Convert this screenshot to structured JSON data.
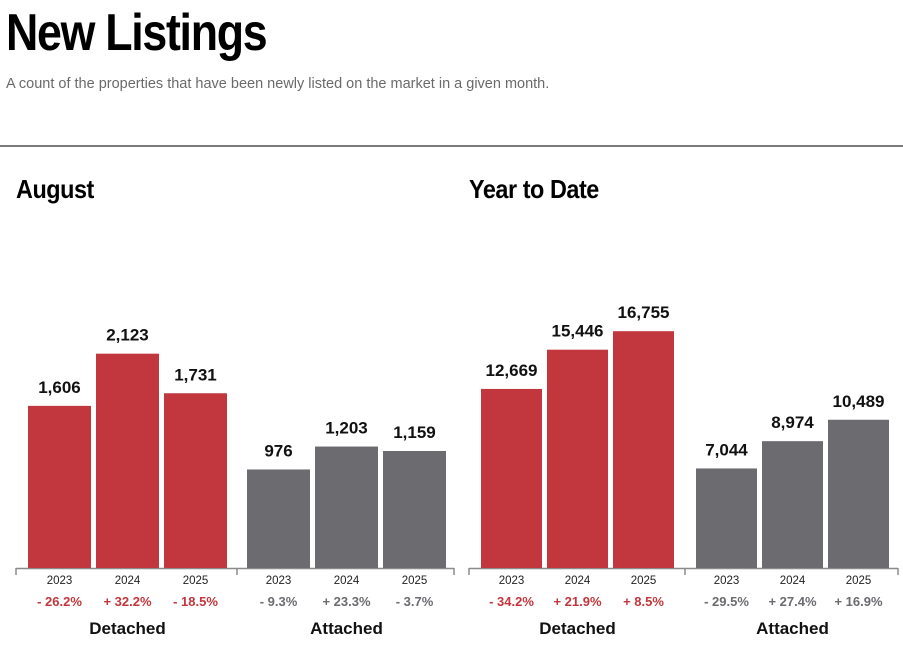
{
  "header": {
    "title": "New Listings",
    "subtitle": "A count of the properties that have been newly listed on the market in a given month."
  },
  "colors": {
    "detached": "#c1373d",
    "attached": "#6b6b70",
    "detached_change": "#c1373d",
    "attached_change": "#6b6b70",
    "axis": "#8a8a8a"
  },
  "chart_data": [
    {
      "type": "bar",
      "title": "August",
      "categories": [
        "2023",
        "2024",
        "2025"
      ],
      "series": [
        {
          "name": "Detached",
          "values": [
            1606,
            2123,
            1731
          ],
          "labels": [
            "1,606",
            "2,123",
            "1,731"
          ],
          "changes": [
            "- 26.2%",
            "+ 32.2%",
            "- 18.5%"
          ]
        },
        {
          "name": "Attached",
          "values": [
            976,
            1203,
            1159
          ],
          "labels": [
            "976",
            "1,203",
            "1,159"
          ],
          "changes": [
            "- 9.3%",
            "+ 23.3%",
            "- 3.7%"
          ]
        }
      ],
      "xlabel": "",
      "ylabel": "",
      "ylim": [
        0,
        3150
      ],
      "grid": false,
      "legend": "none"
    },
    {
      "type": "bar",
      "title": "Year to Date",
      "categories": [
        "2023",
        "2024",
        "2025"
      ],
      "series": [
        {
          "name": "Detached",
          "values": [
            12669,
            15446,
            16755
          ],
          "labels": [
            "12,669",
            "15,446",
            "16,755"
          ],
          "changes": [
            "- 34.2%",
            "+ 21.9%",
            "+ 8.5%"
          ]
        },
        {
          "name": "Attached",
          "values": [
            7044,
            8974,
            10489
          ],
          "labels": [
            "7,044",
            "8,974",
            "10,489"
          ],
          "changes": [
            "- 29.5%",
            "+ 27.4%",
            "+ 16.9%"
          ]
        }
      ],
      "xlabel": "",
      "ylabel": "",
      "ylim": [
        0,
        22500
      ],
      "grid": false,
      "legend": "none"
    }
  ]
}
